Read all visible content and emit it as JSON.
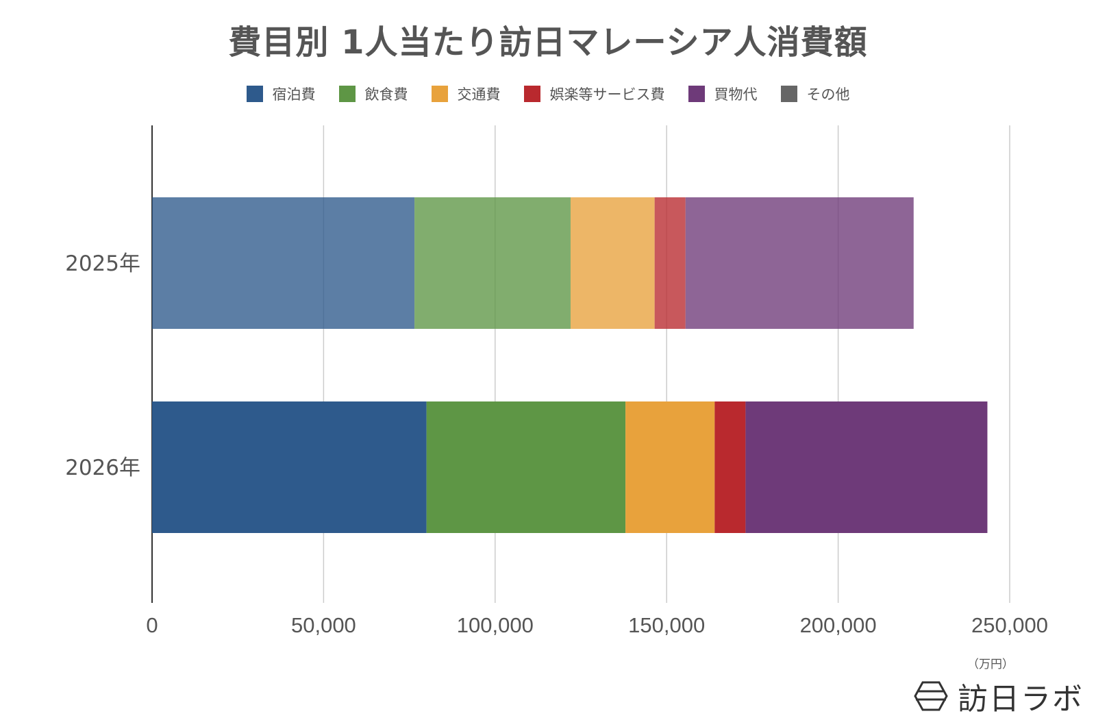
{
  "chart_data": {
    "type": "bar",
    "orientation": "horizontal",
    "stacked": true,
    "title": "費目別 1人当たり訪日マレーシア人消費額",
    "unit": "（万円）",
    "categories": [
      "2025年",
      "2026年"
    ],
    "xlim": [
      0,
      250000
    ],
    "xticks": [
      0,
      50000,
      100000,
      150000,
      200000,
      250000
    ],
    "xtick_labels": [
      "0",
      "50,000",
      "100,000",
      "150,000",
      "200,000",
      "250,000"
    ],
    "grid": true,
    "legend_position": "top",
    "series": [
      {
        "name": "宿泊費",
        "color": "#2e5a8c",
        "values": [
          76500,
          80000
        ]
      },
      {
        "name": "飲食費",
        "color": "#5e9645",
        "values": [
          45500,
          58000
        ]
      },
      {
        "name": "交通費",
        "color": "#e8a23c",
        "values": [
          24500,
          26000
        ]
      },
      {
        "name": "娯楽等サービス費",
        "color": "#b9292e",
        "values": [
          9000,
          9000
        ]
      },
      {
        "name": "買物代",
        "color": "#6e3a79",
        "values": [
          66500,
          70500
        ]
      },
      {
        "name": "その他",
        "color": "#666666",
        "values": [
          0,
          0
        ]
      }
    ],
    "faded_category_opacity": [
      0.78,
      1.0
    ]
  },
  "brand": {
    "text": "訪日ラボ",
    "icon": "hexagon-logo-icon"
  }
}
